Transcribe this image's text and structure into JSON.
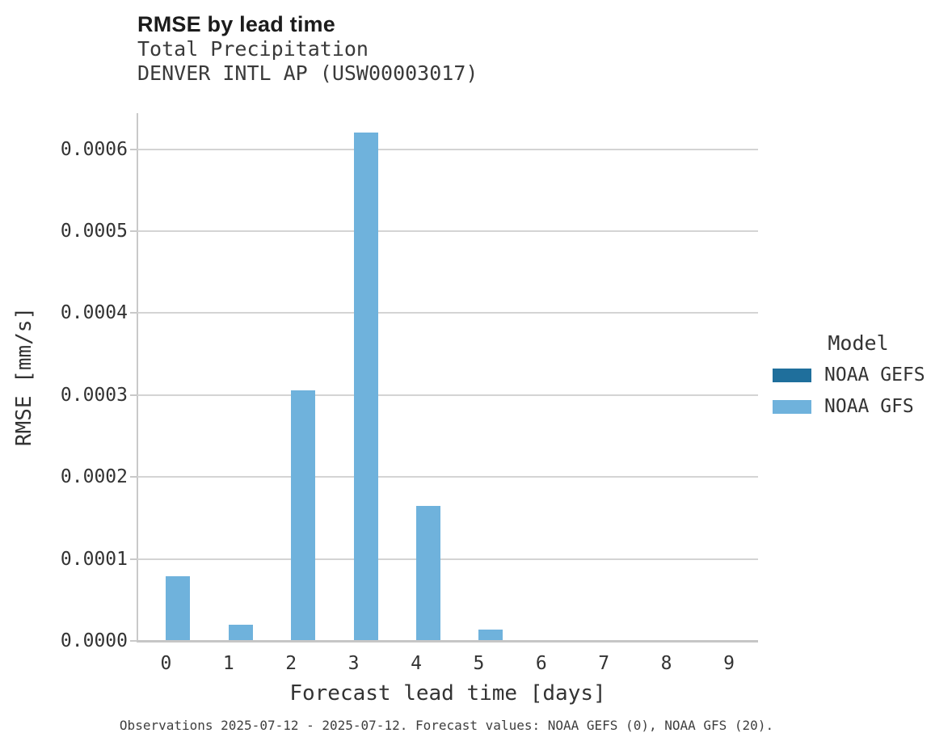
{
  "header": {
    "title": "RMSE by lead time",
    "subtitle1": "Total Precipitation",
    "subtitle2": "DENVER INTL AP (USW00003017)"
  },
  "colors": {
    "noaa_gefs": "#1f6f9c",
    "noaa_gfs": "#6fb2dc",
    "gridline": "#d4d4d4",
    "axis_line": "#c9c9c9",
    "text": "#333333"
  },
  "legend": {
    "title": "Model"
  },
  "footer": {
    "note": "Observations 2025-07-12 - 2025-07-12. Forecast values: NOAA GEFS (0), NOAA GFS (20)."
  },
  "chart_data": {
    "type": "bar",
    "title": "RMSE by lead time",
    "subtitle": "Total Precipitation",
    "station": "DENVER INTL AP (USW00003017)",
    "xlabel": "Forecast lead time [days]",
    "ylabel": "RMSE [mm/s]",
    "categories": [
      "0",
      "1",
      "2",
      "3",
      "4",
      "5",
      "6",
      "7",
      "8",
      "9"
    ],
    "series": [
      {
        "name": "NOAA GEFS",
        "color": "#1f6f9c",
        "values": [
          0,
          0,
          0,
          0,
          0,
          0,
          0,
          0,
          0,
          0
        ]
      },
      {
        "name": "NOAA GFS",
        "color": "#6fb2dc",
        "values": [
          7.9e-05,
          2e-05,
          0.000306,
          0.00062,
          0.000165,
          1.4e-05,
          0,
          0,
          0,
          0
        ]
      }
    ],
    "ylim": [
      0,
      0.000644
    ],
    "yticks": [
      0,
      0.0001,
      0.0002,
      0.0003,
      0.0004,
      0.0005,
      0.0006
    ],
    "ytick_labels": [
      "0.0000",
      "0.0001",
      "0.0002",
      "0.0003",
      "0.0004",
      "0.0005",
      "0.0006"
    ],
    "grid": "horizontal",
    "legend_title": "Model",
    "legend_position": "right"
  }
}
